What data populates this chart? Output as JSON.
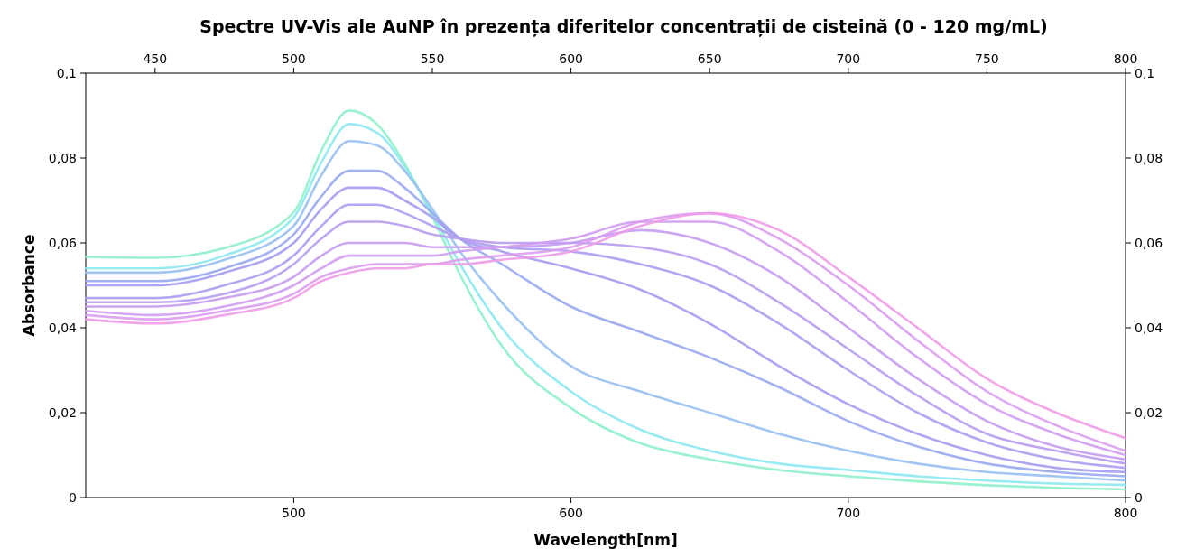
{
  "chart_data": {
    "type": "line",
    "title": "Spectre UV-Vis ale AuNP în prezența diferitelor concentrații de cisteină (0 - 120 mg/mL)",
    "xlabel": "Wavelength[nm]",
    "ylabel": "Absorbance",
    "x": [
      425,
      450,
      475,
      500,
      510,
      520,
      530,
      540,
      550,
      560,
      575,
      600,
      625,
      650,
      675,
      700,
      725,
      750,
      775,
      800
    ],
    "xlim": [
      425,
      800
    ],
    "xticks": [
      500,
      600,
      700,
      800
    ],
    "x2lim": [
      425,
      800
    ],
    "x2ticks": [
      450,
      500,
      550,
      600,
      650,
      700,
      750,
      800
    ],
    "ylim": [
      0,
      0.1
    ],
    "yticks": [
      0,
      {
        "value": 0.02,
        "label": "0,02"
      },
      {
        "value": 0.04,
        "label": "0,04"
      },
      {
        "value": 0.06,
        "label": "0,06"
      },
      {
        "value": 0.08,
        "label": "0,08"
      },
      {
        "value": 0.1,
        "label": "0,1"
      }
    ],
    "y2lim": [
      0,
      0.1
    ],
    "y2ticks": [
      0,
      {
        "value": 0.02,
        "label": "0,02"
      },
      {
        "value": 0.04,
        "label": "0,04"
      },
      {
        "value": 0.06,
        "label": "0,06"
      },
      {
        "value": 0.08,
        "label": "0,08"
      },
      {
        "value": 0.1,
        "label": "0,1"
      }
    ],
    "grid": false,
    "marker": "none",
    "line_style": "solid",
    "series": [
      {
        "color": "#8ef0c8",
        "values": [
          0.0567,
          0.0565,
          0.0588,
          0.0672,
          0.0818,
          0.0912,
          0.088,
          0.0787,
          0.0661,
          0.0525,
          0.0358,
          0.0211,
          0.0128,
          0.009,
          0.0065,
          0.005,
          0.0038,
          0.0029,
          0.0023,
          0.0019
        ]
      },
      {
        "color": "#8ce8f0",
        "values": [
          0.054,
          0.054,
          0.057,
          0.066,
          0.079,
          0.088,
          0.086,
          0.078,
          0.067,
          0.055,
          0.04,
          0.025,
          0.016,
          0.011,
          0.008,
          0.0065,
          0.005,
          0.004,
          0.0033,
          0.003
        ]
      },
      {
        "color": "#98c0f0",
        "values": [
          0.053,
          0.053,
          0.056,
          0.064,
          0.076,
          0.084,
          0.083,
          0.077,
          0.068,
          0.058,
          0.046,
          0.031,
          0.025,
          0.02,
          0.015,
          0.011,
          0.008,
          0.006,
          0.005,
          0.004
        ]
      },
      {
        "color": "#9aa8f0",
        "values": [
          0.051,
          0.051,
          0.054,
          0.062,
          0.071,
          0.077,
          0.077,
          0.073,
          0.067,
          0.061,
          0.055,
          0.045,
          0.039,
          0.033,
          0.026,
          0.018,
          0.012,
          0.008,
          0.006,
          0.005
        ]
      },
      {
        "color": "#a49cf0",
        "values": [
          0.05,
          0.05,
          0.053,
          0.06,
          0.068,
          0.073,
          0.073,
          0.07,
          0.066,
          0.061,
          0.058,
          0.054,
          0.049,
          0.041,
          0.031,
          0.022,
          0.015,
          0.01,
          0.007,
          0.006
        ]
      },
      {
        "color": "#ae9cf0",
        "values": [
          0.047,
          0.047,
          0.05,
          0.057,
          0.064,
          0.069,
          0.069,
          0.067,
          0.064,
          0.061,
          0.059,
          0.058,
          0.055,
          0.05,
          0.041,
          0.03,
          0.02,
          0.013,
          0.009,
          0.007
        ]
      },
      {
        "color": "#b89cf0",
        "values": [
          0.046,
          0.046,
          0.048,
          0.055,
          0.061,
          0.065,
          0.065,
          0.064,
          0.062,
          0.061,
          0.06,
          0.06,
          0.059,
          0.055,
          0.046,
          0.035,
          0.024,
          0.015,
          0.011,
          0.008
        ]
      },
      {
        "color": "#c49cf0",
        "values": [
          0.045,
          0.045,
          0.047,
          0.052,
          0.057,
          0.06,
          0.06,
          0.06,
          0.059,
          0.059,
          0.059,
          0.06,
          0.063,
          0.06,
          0.052,
          0.04,
          0.028,
          0.018,
          0.012,
          0.009
        ]
      },
      {
        "color": "#d09cf0",
        "values": [
          0.044,
          0.043,
          0.045,
          0.05,
          0.054,
          0.057,
          0.057,
          0.057,
          0.057,
          0.058,
          0.059,
          0.061,
          0.065,
          0.065,
          0.058,
          0.046,
          0.033,
          0.022,
          0.015,
          0.01
        ]
      },
      {
        "color": "#dc9cf0",
        "values": [
          0.043,
          0.042,
          0.044,
          0.048,
          0.052,
          0.054,
          0.055,
          0.055,
          0.055,
          0.056,
          0.057,
          0.059,
          0.065,
          0.067,
          0.061,
          0.05,
          0.037,
          0.025,
          0.017,
          0.011
        ]
      },
      {
        "color": "#f09ce8",
        "values": [
          0.042,
          0.041,
          0.043,
          0.047,
          0.051,
          0.053,
          0.054,
          0.054,
          0.055,
          0.055,
          0.056,
          0.058,
          0.064,
          0.067,
          0.063,
          0.052,
          0.04,
          0.028,
          0.02,
          0.014
        ]
      }
    ]
  }
}
